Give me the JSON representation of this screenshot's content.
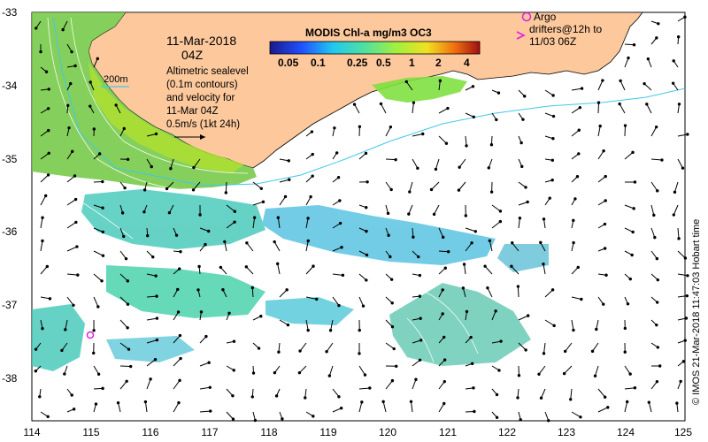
{
  "map": {
    "date": "11-Mar-2018",
    "time": "04Z",
    "iso_label": "200m",
    "legend_lines": [
      "Altimetric sealevel",
      "(0.1m contours)",
      "and velocity for",
      "11-Mar 04Z",
      "0.5m/s (1kt 24h)"
    ],
    "argo_title": "Argo",
    "drifter_lines": [
      "drifters@12h to",
      "11/03 06Z"
    ],
    "colorbar_title": "MODIS Chl-a mg/m3 OC3",
    "colorbar_ticks": [
      "0.05",
      "0.1",
      "0.25",
      "0.5",
      "1",
      "2",
      "4"
    ],
    "credit": "© IMOS 21-Mar-2018 11:47:03 Hobart time",
    "x_ticks": [
      "114",
      "115",
      "116",
      "117",
      "118",
      "119",
      "120",
      "121",
      "122",
      "123",
      "124",
      "125"
    ],
    "y_ticks": [
      "-33",
      "-34",
      "-35",
      "-36",
      "-37",
      "-38"
    ]
  },
  "colors": {
    "land": "#fcc89c",
    "isobath": "#40c8e8",
    "argo": "#e020e0"
  }
}
